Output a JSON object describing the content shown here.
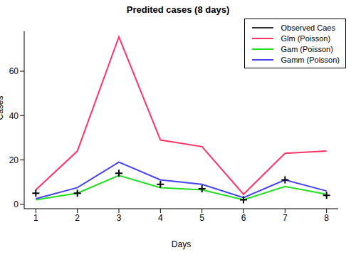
{
  "chart_data": {
    "type": "line",
    "title": "Predited cases (8 days)",
    "x_label": "Days",
    "y_label": "Cases",
    "x": [
      1,
      2,
      3,
      4,
      5,
      6,
      7,
      8
    ],
    "xlim": [
      0.72,
      8.28
    ],
    "xticks": [
      1,
      2,
      3,
      4,
      5,
      6,
      7,
      8
    ],
    "ylim": [
      -2,
      78
    ],
    "yticks": [
      0,
      20,
      40,
      60
    ],
    "grid": false,
    "legend": "top right",
    "series": [
      {
        "name": "Observed Caes",
        "type": "scatter",
        "marker": "plus",
        "line_style": "none",
        "color": "#333333",
        "values": [
          5,
          5,
          14,
          9,
          7,
          2,
          11,
          4
        ]
      },
      {
        "name": "Glm (Poisson)",
        "type": "line",
        "line_style": "solid",
        "color": "#ff3366",
        "values": [
          6.5,
          24,
          75.5,
          29,
          26,
          4.5,
          23,
          24
        ]
      },
      {
        "name": "Gam (Poisson)",
        "type": "line",
        "line_style": "solid",
        "color": "#22dd22",
        "values": [
          2,
          5,
          13,
          7.5,
          6.5,
          2,
          8,
          4.5
        ]
      },
      {
        "name": "Gamm (Poisson)",
        "type": "line",
        "line_style": "solid",
        "color": "#4444ee",
        "values": [
          2.5,
          7.5,
          19,
          11,
          9,
          3,
          11,
          6
        ]
      }
    ]
  }
}
